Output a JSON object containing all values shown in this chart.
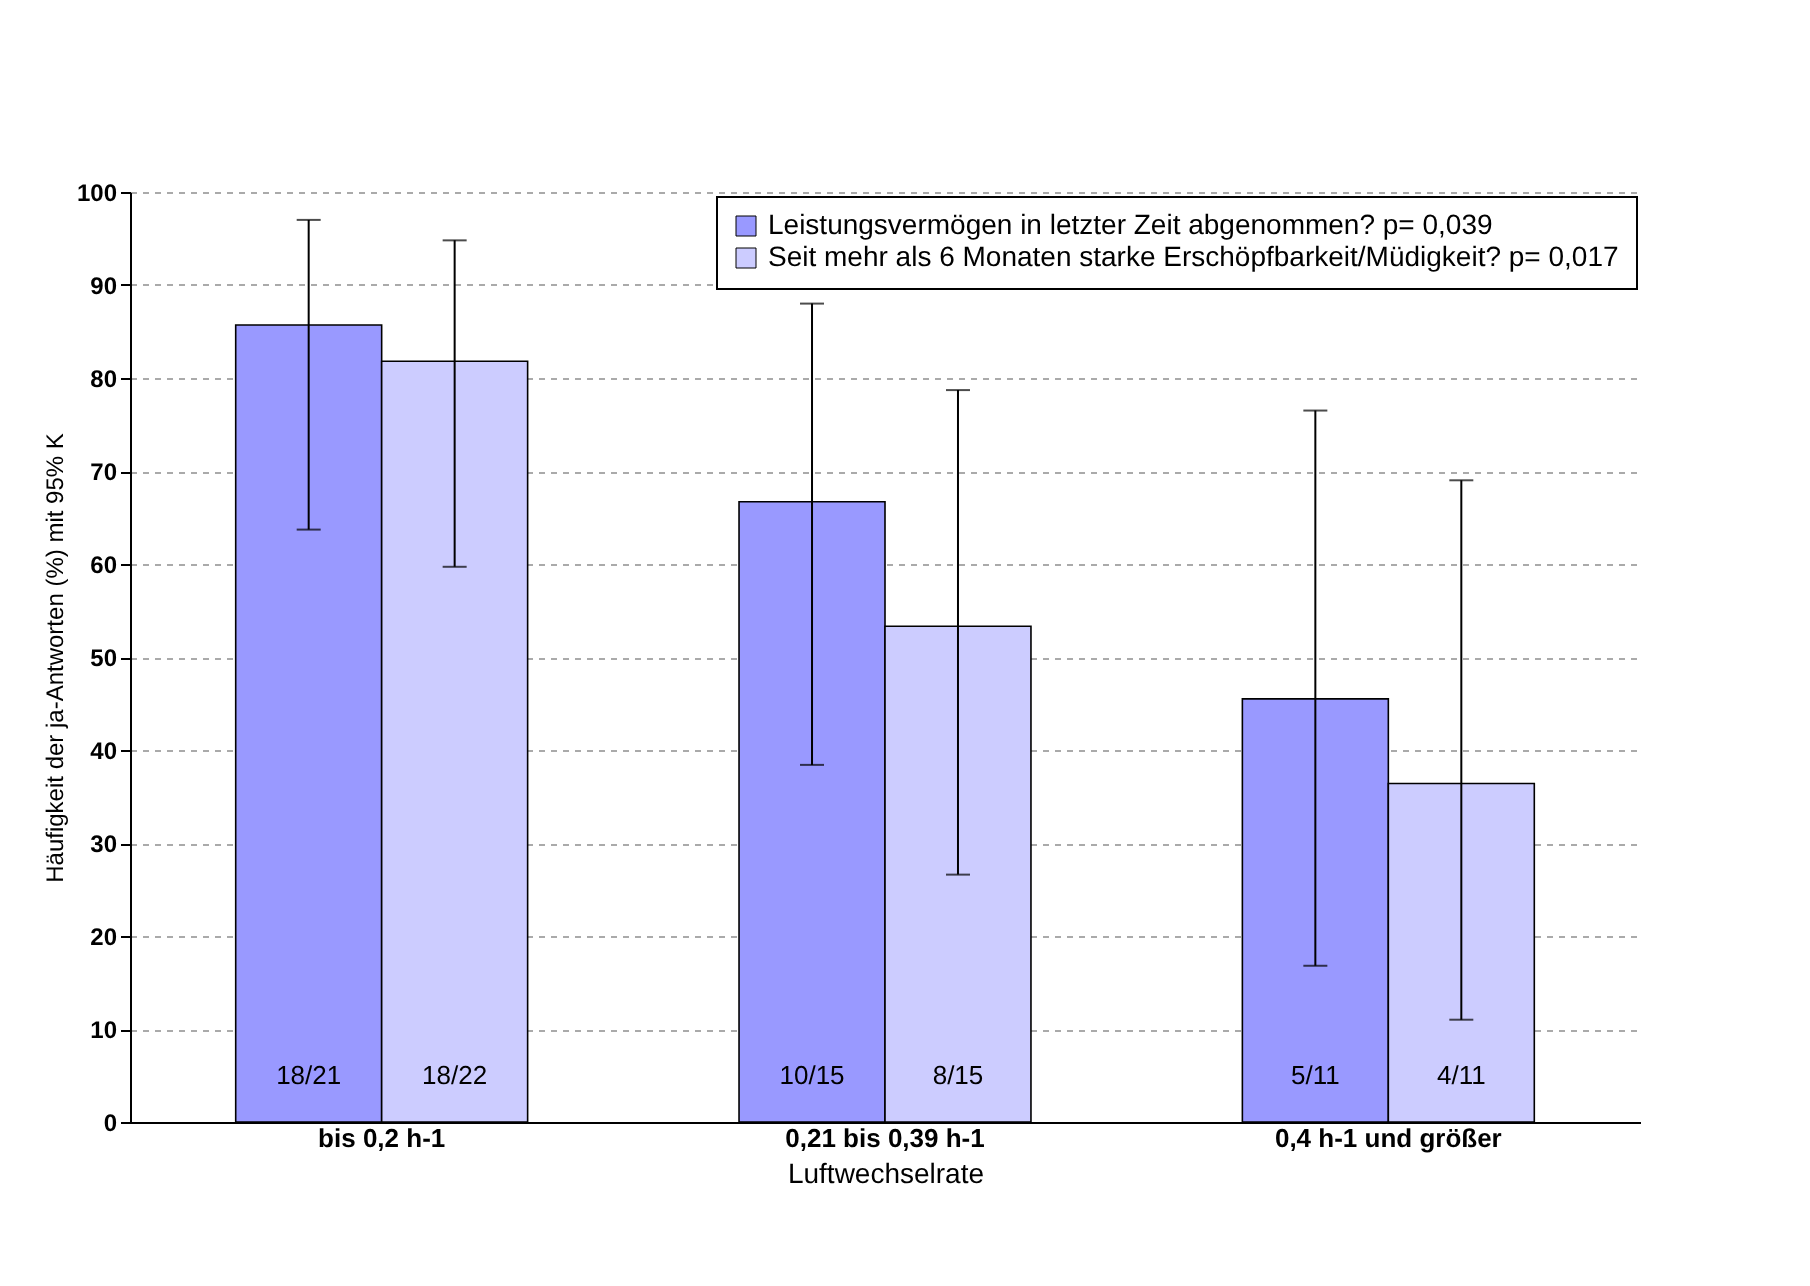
{
  "chart_data": {
    "type": "bar",
    "categories": [
      "bis 0,2 h-1",
      "0,21 bis 0,39 h-1",
      "0,4 h-1 und  größer"
    ],
    "xlabel": "Luftwechselrate",
    "ylabel": "Häufigkeit der ja-Antworten (%) mit 95% K",
    "ylim": [
      0,
      100
    ],
    "yticks": [
      0,
      10,
      20,
      30,
      40,
      50,
      60,
      70,
      80,
      90,
      100
    ],
    "grid": "y",
    "legend": "top right",
    "series": [
      {
        "name": "Leistungsvermögen in letzter Zeit abgenommen? p= 0,039",
        "color": "#9999ff",
        "values": [
          85.7,
          66.7,
          45.5
        ],
        "errors": [
          [
            63.7,
            97
          ],
          [
            38.4,
            88
          ],
          [
            16.8,
            76.5
          ]
        ],
        "value_labels": [
          "18/21",
          "10/15",
          "5/11"
        ]
      },
      {
        "name": "Seit mehr als 6 Monaten starke Erschöpfbarkeit/Müdigkeit? p= 0,017",
        "color": "#ccccff",
        "values": [
          81.8,
          53.3,
          36.4
        ],
        "errors": [
          [
            59.7,
            94.8
          ],
          [
            26.6,
            78.7
          ],
          [
            11,
            69
          ]
        ],
        "value_labels": [
          "18/22",
          "8/15",
          "4/11"
        ]
      }
    ]
  }
}
